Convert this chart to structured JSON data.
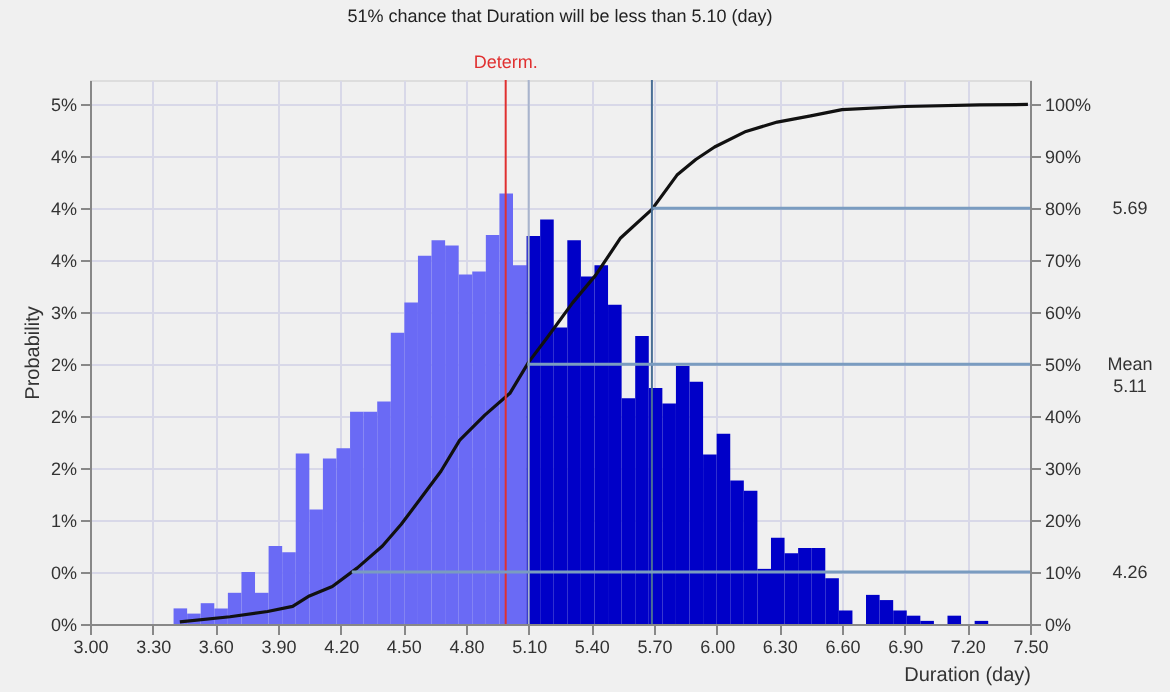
{
  "chart_data": {
    "type": "histogram",
    "title": "51% chance that Duration will be less than 5.10 (day)",
    "xlabel": "Duration (day)",
    "ylabel": "Probability",
    "bins": [
      3.4,
      3.465,
      3.53,
      3.595,
      3.66,
      3.725,
      3.79,
      3.855,
      3.92,
      3.985,
      4.05,
      4.115,
      4.18,
      4.245,
      4.31,
      4.375,
      4.44,
      4.505,
      4.57,
      4.635,
      4.7,
      4.765,
      4.83,
      4.895,
      4.96,
      5.025,
      5.09,
      5.155,
      5.22,
      5.285,
      5.35,
      5.415,
      5.48,
      5.545,
      5.61,
      5.675,
      5.74,
      5.805,
      5.87,
      5.935,
      6.0,
      6.065,
      6.13,
      6.195,
      6.26,
      6.325,
      6.39,
      6.455,
      6.52,
      6.585,
      6.65,
      6.715,
      6.78,
      6.845,
      6.91,
      6.975,
      7.04,
      7.105,
      7.17,
      7.235,
      7.3
    ],
    "values": [
      0.15,
      0.1,
      0.2,
      0.15,
      0.3,
      0.5,
      0.3,
      0.75,
      0.69,
      1.64,
      1.1,
      1.59,
      1.69,
      2.04,
      2.04,
      2.14,
      2.8,
      3.09,
      3.54,
      3.69,
      3.64,
      3.36,
      3.39,
      3.74,
      4.14,
      3.45,
      3.73,
      3.89,
      2.85,
      3.69,
      3.34,
      3.45,
      3.07,
      2.17,
      2.77,
      2.27,
      2.12,
      2.48,
      2.33,
      1.63,
      1.83,
      1.38,
      1.28,
      0.53,
      0.83,
      0.68,
      0.73,
      0.73,
      0.44,
      0.13,
      0,
      0.28,
      0.23,
      0.13,
      0.08,
      0.03,
      0,
      0.08,
      0,
      0.03
    ],
    "colors": [
      "#6a6af5",
      "#6a6af5",
      "#6a6af5",
      "#6a6af5",
      "#6a6af5",
      "#6a6af5",
      "#6a6af5",
      "#6a6af5",
      "#6a6af5",
      "#6a6af5",
      "#6a6af5",
      "#6a6af5",
      "#6a6af5",
      "#6a6af5",
      "#6a6af5",
      "#6a6af5",
      "#6a6af5",
      "#6a6af5",
      "#6a6af5",
      "#6a6af5",
      "#6a6af5",
      "#6a6af5",
      "#6a6af5",
      "#6a6af5",
      "#6a6af5",
      "#6a6af5",
      "#0000c8",
      "#0000c8",
      "#0000c8",
      "#0000c8",
      "#0000c8",
      "#0000c8",
      "#0000c8",
      "#0000c8",
      "#0000c8",
      "#0000c8",
      "#0000c8",
      "#0000c8",
      "#0000c8",
      "#0000c8",
      "#0000c8",
      "#0000c8",
      "#0000c8",
      "#0000c8",
      "#0000c8",
      "#0000c8",
      "#0000c8",
      "#0000c8",
      "#0000c8",
      "#0000c8",
      "#0000c8",
      "#0000c8",
      "#0000c8",
      "#0000c8",
      "#0000c8",
      "#0000c8",
      "#0000c8",
      "#0000c8",
      "#0000c8",
      "#0000c8"
    ],
    "series": [
      {
        "type": "line",
        "axis": "y2",
        "color": "#111111",
        "x": [
          3.43,
          3.67,
          3.85,
          3.97,
          4.05,
          4.16,
          4.28,
          4.4,
          4.49,
          4.58,
          4.68,
          4.77,
          4.89,
          5.01,
          5.1,
          5.19,
          5.31,
          5.42,
          5.54,
          5.69,
          5.81,
          5.9,
          5.99,
          6.14,
          6.29,
          6.45,
          6.6,
          6.9,
          7.26,
          7.49
        ],
        "values": [
          0.4,
          1.4,
          2.4,
          3.4,
          5.4,
          7.2,
          10.8,
          15.0,
          19.2,
          24.0,
          29.4,
          35.4,
          40.2,
          44.4,
          50.4,
          55.2,
          61.8,
          67.1,
          74.3,
          79.8,
          86.4,
          89.4,
          91.8,
          94.8,
          96.6,
          97.8,
          99.0,
          99.6,
          99.9,
          100
        ]
      }
    ],
    "xlim": [
      3.0,
      7.5
    ],
    "xticks": [
      {
        "value": 3.0,
        "label": "3.00"
      },
      {
        "value": 3.3,
        "label": "3.30"
      },
      {
        "value": 3.6,
        "label": "3.60"
      },
      {
        "value": 3.9,
        "label": "3.90"
      },
      {
        "value": 4.2,
        "label": "4.20"
      },
      {
        "value": 4.5,
        "label": "4.50"
      },
      {
        "value": 4.8,
        "label": "4.80"
      },
      {
        "value": 5.1,
        "label": "5.10"
      },
      {
        "value": 5.4,
        "label": "5.40"
      },
      {
        "value": 5.7,
        "label": "5.70"
      },
      {
        "value": 6.0,
        "label": "6.00"
      },
      {
        "value": 6.3,
        "label": "6.30"
      },
      {
        "value": 6.6,
        "label": "6.60"
      },
      {
        "value": 6.9,
        "label": "6.90"
      },
      {
        "value": 7.2,
        "label": "7.20"
      },
      {
        "value": 7.5,
        "label": "7.50"
      }
    ],
    "ylim": [
      0,
      5.23
    ],
    "yticks": [
      {
        "value": 0,
        "label": "0%"
      },
      {
        "value": 0.5,
        "label": "0%"
      },
      {
        "value": 1.0,
        "label": "1%"
      },
      {
        "value": 1.5,
        "label": "2%"
      },
      {
        "value": 2.0,
        "label": "2%"
      },
      {
        "value": 2.5,
        "label": "2%"
      },
      {
        "value": 3.0,
        "label": "3%"
      },
      {
        "value": 3.5,
        "label": "4%"
      },
      {
        "value": 4.0,
        "label": "4%"
      },
      {
        "value": 4.5,
        "label": "4%"
      },
      {
        "value": 5.0,
        "label": "5%"
      }
    ],
    "y2lim": [
      0,
      104.7
    ],
    "y2ticks": [
      {
        "value": 0,
        "label": "0%"
      },
      {
        "value": 10,
        "label": "10%"
      },
      {
        "value": 20,
        "label": "20%"
      },
      {
        "value": 30,
        "label": "30%"
      },
      {
        "value": 40,
        "label": "40%"
      },
      {
        "value": 50,
        "label": "50%"
      },
      {
        "value": 60,
        "label": "60%"
      },
      {
        "value": 70,
        "label": "70%"
      },
      {
        "value": 80,
        "label": "80%"
      },
      {
        "value": 90,
        "label": "90%"
      },
      {
        "value": 100,
        "label": "100%"
      }
    ],
    "ref_lines": [
      {
        "axis": "x",
        "value": 4.99,
        "label": "Determ.",
        "color": "#e03030"
      },
      {
        "axis": "x",
        "value": 5.1,
        "color": "#a8b4cc"
      },
      {
        "axis": "x",
        "value": 5.69,
        "color": "#4a6f96"
      },
      {
        "axis": "y2",
        "value": 80,
        "color": "#7a9cc0"
      },
      {
        "axis": "y2",
        "value": 50,
        "color": "#7a9cc0"
      },
      {
        "axis": "y2",
        "value": 10,
        "color": "#7a9cc0"
      }
    ],
    "annotations": [
      "5.69",
      "Mean 5.11",
      "4.26"
    ],
    "grid": true
  }
}
